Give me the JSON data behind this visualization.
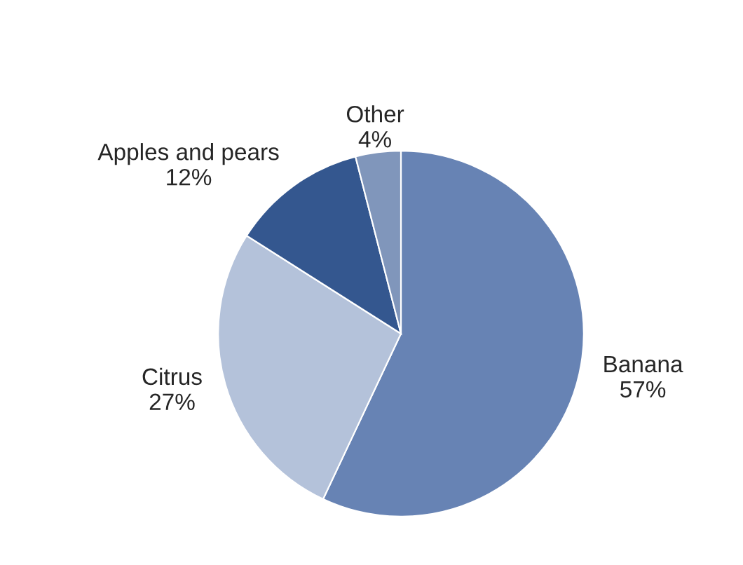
{
  "chart_data": {
    "type": "pie",
    "categories": [
      "Banana",
      "Citrus",
      "Apples and pears",
      "Other"
    ],
    "values": [
      57,
      27,
      12,
      4
    ],
    "value_labels": [
      "57%",
      "27%",
      "12%",
      "4%"
    ],
    "colors": [
      "#6783b4",
      "#b4c2da",
      "#34578f",
      "#8096bb"
    ]
  }
}
